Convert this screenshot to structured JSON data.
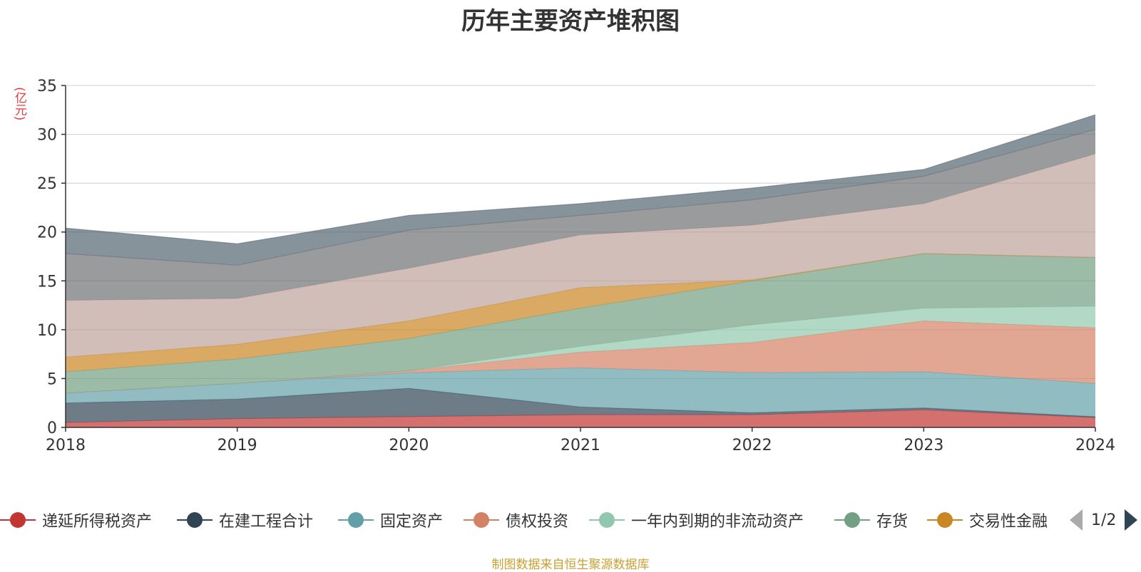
{
  "title": "历年主要资产堆积图",
  "unit_label": "(亿元)",
  "source_text": "制图数据来自恒生聚源数据库",
  "pager": {
    "text": "1/2"
  },
  "legend": [
    {
      "name": "递延所得税资产",
      "color": "#c23531"
    },
    {
      "name": "在建工程合计",
      "color": "#2f4554"
    },
    {
      "name": "固定资产",
      "color": "#61a0a8"
    },
    {
      "name": "债权投资",
      "color": "#d48265"
    },
    {
      "name": "一年内到期的非流动资产",
      "color": "#91c7ae"
    },
    {
      "name": "存货",
      "color": "#749f83"
    },
    {
      "name": "交易性金融",
      "color": "#ca8622"
    }
  ],
  "chart_data": {
    "type": "area",
    "stacked": true,
    "title": "历年主要资产堆积图",
    "ylabel": "(亿元)",
    "x": [
      "2018",
      "2019",
      "2020",
      "2021",
      "2022",
      "2023",
      "2024"
    ],
    "ylim": [
      0,
      35
    ],
    "yticks": [
      0,
      5,
      10,
      15,
      20,
      25,
      30,
      35
    ],
    "grid": true,
    "legend_position": "bottom",
    "series": [
      {
        "name": "递延所得税资产",
        "color": "#c23531",
        "values": [
          0.5,
          0.9,
          1.1,
          1.3,
          1.3,
          1.8,
          1.0
        ]
      },
      {
        "name": "在建工程合计",
        "color": "#2f4554",
        "values": [
          2.0,
          2.0,
          2.9,
          0.8,
          0.2,
          0.2,
          0.1
        ]
      },
      {
        "name": "固定资产",
        "color": "#61a0a8",
        "values": [
          1.0,
          1.6,
          1.6,
          4.0,
          4.1,
          3.7,
          3.4
        ]
      },
      {
        "name": "债权投资",
        "color": "#d48265",
        "values": [
          0.0,
          0.0,
          0.2,
          1.6,
          3.1,
          5.2,
          5.7
        ]
      },
      {
        "name": "一年内到期的非流动资产",
        "color": "#91c7ae",
        "values": [
          0.0,
          0.0,
          0.0,
          0.6,
          1.8,
          1.3,
          2.2
        ]
      },
      {
        "name": "存货",
        "color": "#749f83",
        "values": [
          2.2,
          2.5,
          3.3,
          3.9,
          4.5,
          5.6,
          5.0
        ]
      },
      {
        "name": "交易性金融",
        "color": "#ca8622",
        "values": [
          1.5,
          1.5,
          1.8,
          2.1,
          0.1,
          0.0,
          0.0
        ]
      },
      {
        "name": "",
        "color": "#bda29a",
        "values": [
          5.8,
          4.7,
          5.4,
          5.4,
          5.6,
          5.1,
          10.6
        ]
      },
      {
        "name": "",
        "color": "#6e7074",
        "values": [
          4.8,
          3.4,
          3.9,
          2.0,
          2.6,
          2.8,
          2.5
        ]
      },
      {
        "name": "",
        "color": "#546570",
        "values": [
          2.6,
          2.2,
          1.5,
          1.2,
          1.2,
          0.7,
          1.5
        ]
      }
    ]
  }
}
